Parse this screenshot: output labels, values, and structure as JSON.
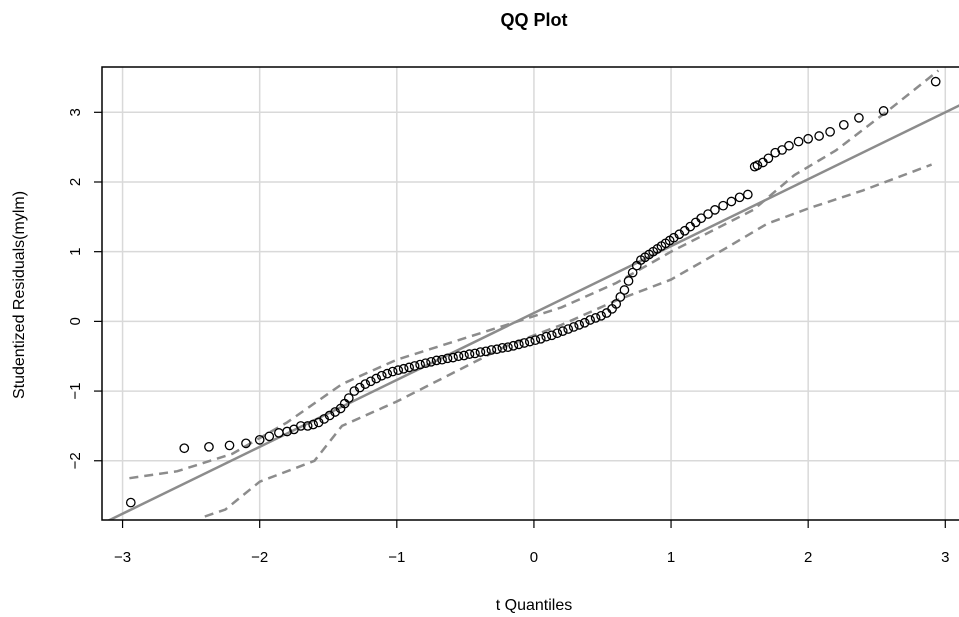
{
  "chart_data": {
    "type": "scatter",
    "title": "QQ Plot",
    "xlabel": "t Quantiles",
    "ylabel": "Studentized Residuals(mylm)",
    "xlim": [
      -3.15,
      3.1
    ],
    "ylim": [
      -2.85,
      3.65
    ],
    "x_ticks": [
      -3,
      -2,
      -1,
      0,
      1,
      2,
      3
    ],
    "y_ticks": [
      -2,
      -1,
      0,
      1,
      2,
      3
    ],
    "x_tick_labels": [
      "−3",
      "−2",
      "−1",
      "0",
      "1",
      "2",
      "3"
    ],
    "y_tick_labels": [
      "−2",
      "−1",
      "0",
      "1",
      "2",
      "3"
    ],
    "grid": true,
    "colors": {
      "points": "#000000",
      "reference_line": "#8c8c8c",
      "envelope": "#8c8c8c",
      "grid": "#d9d9d9",
      "frame": "#000000"
    },
    "reference_line": {
      "intercept": 0.12,
      "slope": 0.96
    },
    "envelope": {
      "upper": [
        [
          -2.95,
          -2.25
        ],
        [
          -2.6,
          -2.15
        ],
        [
          -2.2,
          -1.9
        ],
        [
          -1.8,
          -1.45
        ],
        [
          -1.4,
          -0.9
        ],
        [
          -1.0,
          -0.55
        ],
        [
          -0.6,
          -0.3
        ],
        [
          -0.2,
          -0.05
        ],
        [
          0.2,
          0.2
        ],
        [
          0.6,
          0.55
        ],
        [
          1.0,
          1.0
        ],
        [
          1.4,
          1.4
        ],
        [
          1.6,
          1.6
        ],
        [
          1.9,
          2.1
        ],
        [
          2.2,
          2.45
        ],
        [
          2.6,
          3.05
        ],
        [
          2.95,
          3.6
        ]
      ],
      "lower": [
        [
          -2.4,
          -2.8
        ],
        [
          -2.25,
          -2.7
        ],
        [
          -2.0,
          -2.3
        ],
        [
          -1.6,
          -2.0
        ],
        [
          -1.4,
          -1.5
        ],
        [
          -1.0,
          -1.15
        ],
        [
          -0.6,
          -0.75
        ],
        [
          -0.2,
          -0.35
        ],
        [
          0.2,
          -0.05
        ],
        [
          0.6,
          0.3
        ],
        [
          1.0,
          0.6
        ],
        [
          1.4,
          1.05
        ],
        [
          1.7,
          1.4
        ],
        [
          2.0,
          1.62
        ],
        [
          2.4,
          1.88
        ],
        [
          2.9,
          2.25
        ]
      ]
    },
    "points": {
      "x": [
        -2.94,
        -2.55,
        -2.37,
        -2.22,
        -2.1,
        -2.0,
        -1.93,
        -1.86,
        -1.8,
        -1.75,
        -1.7,
        -1.65,
        -1.61,
        -1.57,
        -1.53,
        -1.49,
        -1.45,
        -1.41,
        -1.38,
        -1.35,
        -1.31,
        -1.27,
        -1.23,
        -1.19,
        -1.15,
        -1.11,
        -1.07,
        -1.03,
        -0.99,
        -0.95,
        -0.91,
        -0.87,
        -0.83,
        -0.79,
        -0.75,
        -0.71,
        -0.67,
        -0.63,
        -0.59,
        -0.55,
        -0.51,
        -0.47,
        -0.43,
        -0.39,
        -0.35,
        -0.31,
        -0.27,
        -0.23,
        -0.19,
        -0.15,
        -0.11,
        -0.07,
        -0.03,
        0.01,
        0.05,
        0.09,
        0.13,
        0.17,
        0.21,
        0.25,
        0.29,
        0.33,
        0.37,
        0.41,
        0.45,
        0.49,
        0.53,
        0.57,
        0.6,
        0.63,
        0.66,
        0.69,
        0.72,
        0.75,
        0.78,
        0.81,
        0.84,
        0.87,
        0.9,
        0.93,
        0.96,
        0.99,
        1.02,
        1.06,
        1.1,
        1.14,
        1.18,
        1.22,
        1.27,
        1.32,
        1.38,
        1.44,
        1.5,
        1.56,
        1.61,
        1.63,
        1.67,
        1.71,
        1.76,
        1.81,
        1.86,
        1.93,
        2.0,
        2.08,
        2.16,
        2.26,
        2.37,
        2.55,
        2.93
      ],
      "y": [
        -2.6,
        -1.82,
        -1.8,
        -1.78,
        -1.75,
        -1.7,
        -1.65,
        -1.6,
        -1.58,
        -1.55,
        -1.5,
        -1.5,
        -1.48,
        -1.45,
        -1.4,
        -1.35,
        -1.3,
        -1.25,
        -1.18,
        -1.1,
        -1.0,
        -0.95,
        -0.9,
        -0.86,
        -0.82,
        -0.78,
        -0.75,
        -0.72,
        -0.7,
        -0.68,
        -0.66,
        -0.64,
        -0.62,
        -0.6,
        -0.58,
        -0.56,
        -0.55,
        -0.53,
        -0.52,
        -0.5,
        -0.49,
        -0.47,
        -0.46,
        -0.44,
        -0.43,
        -0.41,
        -0.4,
        -0.38,
        -0.37,
        -0.35,
        -0.33,
        -0.31,
        -0.29,
        -0.27,
        -0.25,
        -0.22,
        -0.2,
        -0.17,
        -0.14,
        -0.11,
        -0.08,
        -0.05,
        -0.02,
        0.02,
        0.05,
        0.08,
        0.12,
        0.18,
        0.25,
        0.35,
        0.45,
        0.58,
        0.7,
        0.8,
        0.88,
        0.92,
        0.96,
        1.0,
        1.04,
        1.08,
        1.12,
        1.16,
        1.2,
        1.25,
        1.3,
        1.36,
        1.42,
        1.48,
        1.54,
        1.6,
        1.66,
        1.72,
        1.78,
        1.82,
        2.22,
        2.24,
        2.28,
        2.34,
        2.42,
        2.46,
        2.52,
        2.58,
        2.62,
        2.66,
        2.72,
        2.82,
        2.92,
        3.02,
        3.44
      ]
    }
  }
}
